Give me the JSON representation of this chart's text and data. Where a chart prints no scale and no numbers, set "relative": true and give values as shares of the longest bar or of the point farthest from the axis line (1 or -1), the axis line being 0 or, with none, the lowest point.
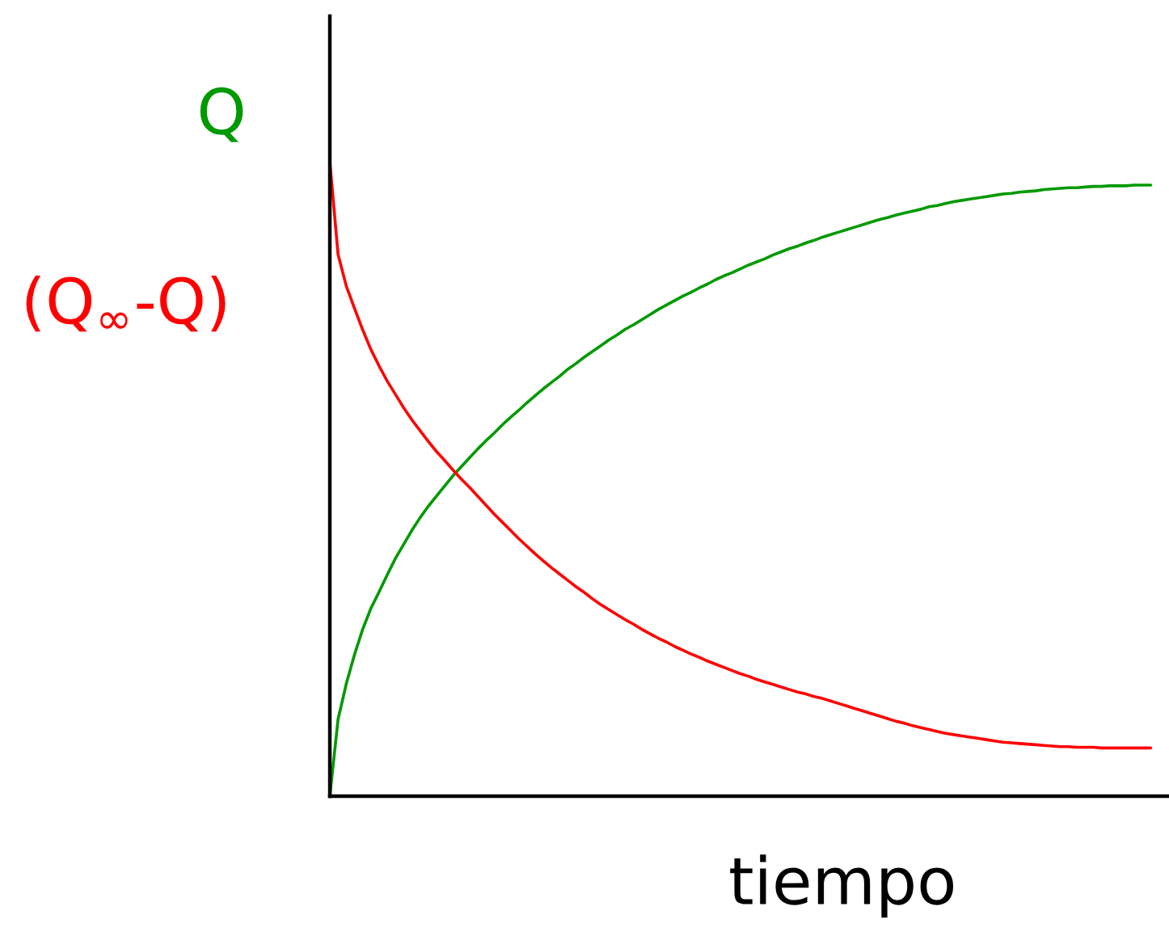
{
  "chart_data": {
    "type": "line",
    "xlabel": "tiempo",
    "relative": true,
    "categories": [
      null,
      null,
      null,
      null,
      null,
      null,
      null,
      null,
      null,
      null,
      null,
      null,
      null,
      null,
      null,
      null,
      null,
      null,
      null,
      null,
      null,
      null,
      null,
      null,
      null,
      null,
      null,
      null,
      null,
      null,
      null,
      null,
      null,
      null,
      null,
      null,
      null,
      null,
      null,
      null,
      null,
      null,
      null,
      null,
      null,
      null,
      null,
      null,
      null,
      null,
      null,
      null,
      null,
      null,
      null,
      null,
      null,
      null,
      null,
      null,
      null,
      null,
      null,
      null,
      null,
      null,
      null,
      null,
      null,
      null,
      null,
      null,
      null,
      null,
      null,
      null,
      null,
      null,
      null,
      null,
      null,
      null,
      null,
      null,
      null,
      null,
      null,
      null,
      null,
      null,
      null,
      null,
      null,
      null,
      null,
      null,
      null,
      null,
      null,
      null,
      null
    ],
    "series": [
      {
        "name": "Q",
        "color": "#009900",
        "values": [
          0,
          0.121,
          0.177,
          0.223,
          0.263,
          0.296,
          0.322,
          0.349,
          0.375,
          0.397,
          0.419,
          0.439,
          0.457,
          0.473,
          0.489,
          0.505,
          0.519,
          0.533,
          0.547,
          0.56,
          0.572,
          0.585,
          0.597,
          0.608,
          0.62,
          0.631,
          0.642,
          0.652,
          0.662,
          0.673,
          0.682,
          0.692,
          0.701,
          0.71,
          0.719,
          0.727,
          0.736,
          0.743,
          0.751,
          0.759,
          0.767,
          0.774,
          0.781,
          0.788,
          0.794,
          0.801,
          0.807,
          0.814,
          0.82,
          0.825,
          0.831,
          0.837,
          0.842,
          0.847,
          0.853,
          0.858,
          0.863,
          0.867,
          0.872,
          0.876,
          0.881,
          0.885,
          0.889,
          0.893,
          0.897,
          0.901,
          0.905,
          0.909,
          0.912,
          0.916,
          0.919,
          0.922,
          0.925,
          0.929,
          0.931,
          0.934,
          0.937,
          0.939,
          0.941,
          0.943,
          0.945,
          0.947,
          0.949,
          0.95,
          0.952,
          0.953,
          0.954,
          0.956,
          0.957,
          0.958,
          0.959,
          0.959,
          0.96,
          0.961,
          0.961,
          0.962,
          0.962,
          0.962,
          0.963,
          0.963,
          0.963
        ]
      },
      {
        "name": "(Q$_{∞}$-Q)",
        "color": "#ff0000",
        "values": [
          1.0,
          0.854,
          0.804,
          0.769,
          0.735,
          0.704,
          0.678,
          0.654,
          0.633,
          0.612,
          0.593,
          0.576,
          0.559,
          0.543,
          0.529,
          0.514,
          0.5,
          0.487,
          0.473,
          0.459,
          0.445,
          0.432,
          0.419,
          0.406,
          0.394,
          0.382,
          0.371,
          0.36,
          0.35,
          0.34,
          0.33,
          0.321,
          0.311,
          0.302,
          0.294,
          0.286,
          0.278,
          0.271,
          0.263,
          0.256,
          0.249,
          0.243,
          0.236,
          0.23,
          0.224,
          0.219,
          0.213,
          0.208,
          0.203,
          0.198,
          0.193,
          0.189,
          0.184,
          0.18,
          0.176,
          0.172,
          0.168,
          0.164,
          0.161,
          0.157,
          0.154,
          0.15,
          0.146,
          0.142,
          0.138,
          0.134,
          0.13,
          0.126,
          0.122,
          0.118,
          0.115,
          0.111,
          0.108,
          0.105,
          0.102,
          0.099,
          0.097,
          0.095,
          0.093,
          0.091,
          0.089,
          0.087,
          0.085,
          0.084,
          0.083,
          0.082,
          0.081,
          0.08,
          0.079,
          0.078,
          0.078,
          0.077,
          0.077,
          0.077,
          0.076,
          0.076,
          0.076,
          0.076,
          0.076,
          0.076,
          0.076
        ]
      }
    ]
  }
}
